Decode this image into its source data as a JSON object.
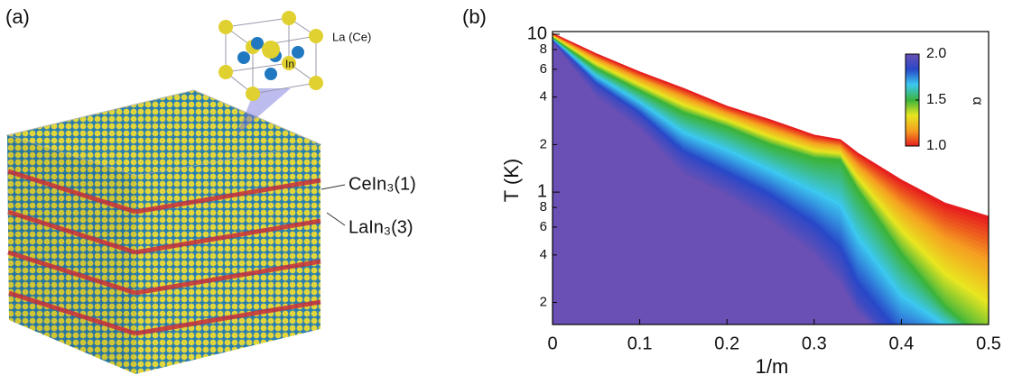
{
  "panel_a": {
    "label": "(a)",
    "unit_cell_labels": [
      "La (Ce)",
      "In"
    ],
    "layer_labels": [
      "CeIn₃(1)",
      "LaIn₃(3)"
    ]
  },
  "chart_data": {
    "type": "heatmap",
    "panel_label": "(b)",
    "x_label": "1/m",
    "y_label": "T (K)",
    "x": [
      0,
      0.05,
      0.1,
      0.15,
      0.2,
      0.25,
      0.3,
      0.33,
      0.35,
      0.4,
      0.45,
      0.5
    ],
    "contours": [
      {
        "level": 1.0,
        "values": [
          10.1,
          7.5,
          5.75,
          4.53,
          3.49,
          2.86,
          2.29,
          2.14,
          1.76,
          1.19,
          0.85,
          0.7
        ]
      },
      {
        "level": 1.5,
        "values": [
          9.5,
          6.1,
          4.4,
          3.2,
          2.6,
          2.0,
          1.65,
          1.6,
          1.04,
          0.41,
          0.19,
          0.11
        ]
      },
      {
        "level": 1.9,
        "values": [
          9.1,
          4.7,
          3.0,
          1.65,
          1.19,
          0.85,
          0.54,
          0.36,
          0.21,
          0.1,
          0.1,
          0.1
        ]
      },
      {
        "level": 2.0,
        "values": [
          8.8,
          4.0,
          2.5,
          1.3,
          0.95,
          0.65,
          0.4,
          0.26,
          0.17,
          0.1,
          0.1,
          0.1
        ]
      }
    ],
    "xlim": [
      0,
      0.5
    ],
    "xticks": [
      0,
      0.1,
      0.2,
      0.3,
      0.4,
      0.5
    ],
    "ylim": [
      0.145,
      10.4
    ],
    "log_y": true,
    "yticks": [
      10,
      8,
      6,
      4,
      2,
      1,
      {
        "value": 0.8,
        "label": "8"
      },
      {
        "value": 0.6,
        "label": "6"
      },
      {
        "value": 0.4,
        "label": "4"
      },
      {
        "value": 0.2,
        "label": "2"
      }
    ],
    "colorbar": {
      "label": "α",
      "zlim": [
        1.0,
        2.0
      ],
      "ticks": [
        {
          "value": 2,
          "label": "2.0"
        },
        {
          "value": 1.5,
          "label": "1.5"
        },
        {
          "value": 1,
          "label": "1.0"
        }
      ],
      "colors": [
        "#e61e1e",
        "#f5a020",
        "#e8e620",
        "#3cb43c",
        "#3cc8f0",
        "#2848c8",
        "#6a50b4"
      ]
    }
  }
}
